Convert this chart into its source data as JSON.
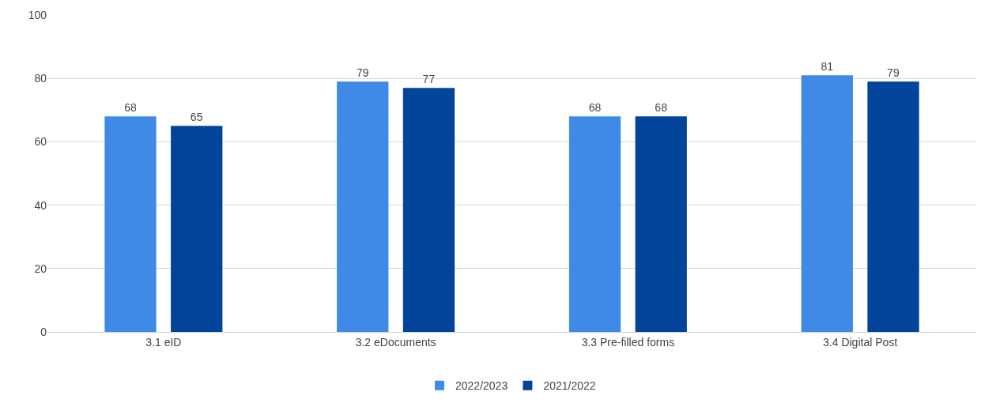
{
  "chart_data": {
    "type": "bar",
    "categories": [
      "3.1 eID",
      "3.2 eDocuments",
      "3.3 Pre-filled forms",
      "3.4 Digital Post"
    ],
    "series": [
      {
        "name": "2022/2023",
        "color": "#3f8ae6",
        "values": [
          68,
          79,
          68,
          81
        ]
      },
      {
        "name": "2021/2022",
        "color": "#02449a",
        "values": [
          65,
          77,
          68,
          79
        ]
      }
    ],
    "ylim": [
      0,
      100
    ],
    "yticks": [
      0,
      20,
      40,
      60,
      80,
      100
    ],
    "grid": "y",
    "legend": "bottom",
    "data_labels": true
  }
}
